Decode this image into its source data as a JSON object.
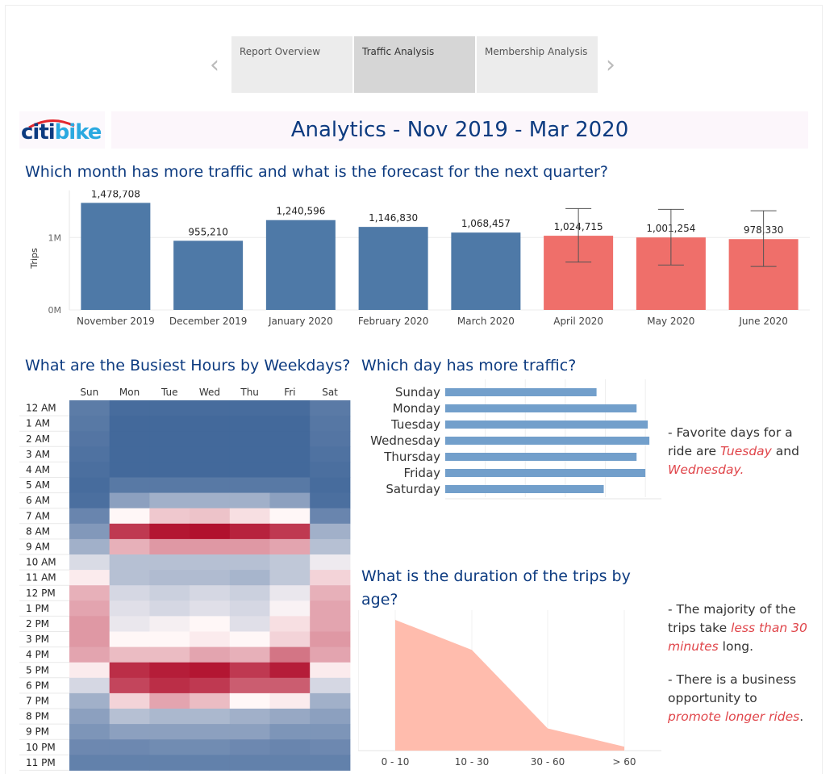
{
  "nav": {
    "tabs": [
      {
        "label": "Report Overview",
        "active": false
      },
      {
        "label": "Traffic Analysis",
        "active": true
      },
      {
        "label": "Membership Analysis",
        "active": false
      }
    ]
  },
  "logo": {
    "text_red": "citi",
    "text_blue": "bike"
  },
  "title": "Analytics - Nov 2019 - Mar 2020",
  "colors": {
    "actual": "#4e79a7",
    "forecast": "#ef6f6a",
    "title": "#0d3b80",
    "highlight": "#e0454a"
  },
  "monthly": {
    "question": "Which month has more traffic and what is the forecast for the next quarter?",
    "chart_data": {
      "type": "bar",
      "categories": [
        "November 2019",
        "December 2019",
        "January 2020",
        "February 2020",
        "March 2020",
        "April 2020",
        "May 2020",
        "June 2020"
      ],
      "values": [
        1478708,
        955210,
        1240596,
        1146830,
        1068457,
        1024715,
        1001254,
        978330
      ],
      "value_labels": [
        "1,478,708",
        "955,210",
        "1,240,596",
        "1,146,830",
        "1,068,457",
        "1,024,715",
        "1,001,254",
        "978,330"
      ],
      "forecast": [
        false,
        false,
        false,
        false,
        false,
        true,
        true,
        true
      ],
      "error_low": [
        null,
        null,
        null,
        null,
        null,
        660000,
        620000,
        600000
      ],
      "error_high": [
        null,
        null,
        null,
        null,
        null,
        1400000,
        1390000,
        1370000
      ],
      "ylabel": "Trips",
      "yticks": [
        0,
        1000000
      ],
      "ytick_labels": [
        "0M",
        "1M"
      ],
      "ylim": [
        0,
        1650000
      ]
    }
  },
  "hours": {
    "question": "What are the Busiest Hours by Weekdays?",
    "chart_data": {
      "type": "heatmap",
      "columns": [
        "Sun",
        "Mon",
        "Tue",
        "Wed",
        "Thu",
        "Fri",
        "Sat"
      ],
      "rows": [
        "12 AM",
        "1 AM",
        "2 AM",
        "3 AM",
        "4 AM",
        "5 AM",
        "6 AM",
        "7 AM",
        "8 AM",
        "9 AM",
        "10 AM",
        "11 AM",
        "12 PM",
        "1 PM",
        "2 PM",
        "3 PM",
        "4 PM",
        "5 PM",
        "6 PM",
        "7 PM",
        "8 PM",
        "9 PM",
        "10 PM",
        "11 PM"
      ],
      "scale": "diverging, -1 = low (blue) to 1 = high (red)",
      "values": [
        [
          -0.78,
          -0.88,
          -0.88,
          -0.88,
          -0.88,
          -0.88,
          -0.79
        ],
        [
          -0.8,
          -0.9,
          -0.9,
          -0.9,
          -0.9,
          -0.9,
          -0.81
        ],
        [
          -0.82,
          -0.9,
          -0.9,
          -0.9,
          -0.9,
          -0.9,
          -0.82
        ],
        [
          -0.84,
          -0.9,
          -0.9,
          -0.9,
          -0.9,
          -0.9,
          -0.84
        ],
        [
          -0.86,
          -0.9,
          -0.9,
          -0.9,
          -0.9,
          -0.9,
          -0.86
        ],
        [
          -0.88,
          -0.8,
          -0.8,
          -0.8,
          -0.8,
          -0.8,
          -0.88
        ],
        [
          -0.86,
          -0.55,
          -0.45,
          -0.45,
          -0.45,
          -0.55,
          -0.86
        ],
        [
          -0.72,
          0.0,
          0.2,
          0.22,
          0.1,
          0.0,
          -0.72
        ],
        [
          -0.6,
          0.8,
          0.95,
          0.97,
          0.9,
          0.8,
          -0.45
        ],
        [
          -0.45,
          0.3,
          0.4,
          0.4,
          0.4,
          0.35,
          -0.35
        ],
        [
          -0.18,
          -0.35,
          -0.35,
          -0.35,
          -0.35,
          -0.3,
          -0.08
        ],
        [
          0.05,
          -0.35,
          -0.38,
          -0.38,
          -0.42,
          -0.3,
          0.15
        ],
        [
          0.3,
          -0.2,
          -0.25,
          -0.2,
          -0.25,
          -0.1,
          0.3
        ],
        [
          0.35,
          -0.15,
          -0.2,
          -0.15,
          -0.2,
          -0.03,
          0.35
        ],
        [
          0.4,
          -0.1,
          -0.05,
          0.0,
          -0.15,
          0.1,
          0.35
        ],
        [
          0.4,
          0.0,
          0.0,
          0.05,
          0.0,
          0.15,
          0.4
        ],
        [
          0.35,
          0.25,
          0.25,
          0.35,
          0.3,
          0.55,
          0.35
        ],
        [
          0.05,
          0.85,
          0.92,
          0.95,
          0.8,
          0.92,
          0.05
        ],
        [
          -0.2,
          0.75,
          0.85,
          0.8,
          0.65,
          0.65,
          -0.2
        ],
        [
          -0.45,
          0.15,
          0.35,
          0.25,
          0.0,
          0.05,
          -0.45
        ],
        [
          -0.55,
          -0.35,
          -0.4,
          -0.4,
          -0.45,
          -0.5,
          -0.55
        ],
        [
          -0.62,
          -0.55,
          -0.55,
          -0.55,
          -0.55,
          -0.62,
          -0.62
        ],
        [
          -0.7,
          -0.7,
          -0.68,
          -0.68,
          -0.7,
          -0.72,
          -0.7
        ],
        [
          -0.75,
          -0.75,
          -0.75,
          -0.75,
          -0.75,
          -0.75,
          -0.75
        ]
      ]
    }
  },
  "days": {
    "question": "Which day has more traffic?",
    "chart_data": {
      "type": "bar",
      "orientation": "horizontal",
      "categories": [
        "Sunday",
        "Monday",
        "Tuesday",
        "Wednesday",
        "Thursday",
        "Friday",
        "Saturday"
      ],
      "values": [
        189,
        239,
        253,
        255,
        239,
        250,
        198
      ],
      "xlim": [
        0,
        270
      ]
    },
    "note": {
      "prefix": "- Favorite days for a ride are ",
      "day1": "Tuesday",
      "middle": " and ",
      "day2": "Wednesday."
    }
  },
  "duration": {
    "question": "What is the duration of the trips by age?",
    "chart_data": {
      "type": "area",
      "categories": [
        "0 - 10",
        "10 - 30",
        "30 - 60",
        "> 60"
      ],
      "values": [
        100,
        77,
        17,
        3
      ],
      "ylim": [
        0,
        100
      ]
    },
    "note1": {
      "prefix": "- The majority of the trips take ",
      "highlight": "less than 30 minutes",
      "suffix": " long."
    },
    "note2": {
      "prefix": "- There is a business opportunity to ",
      "highlight": "promote longer rides",
      "suffix": "."
    }
  }
}
